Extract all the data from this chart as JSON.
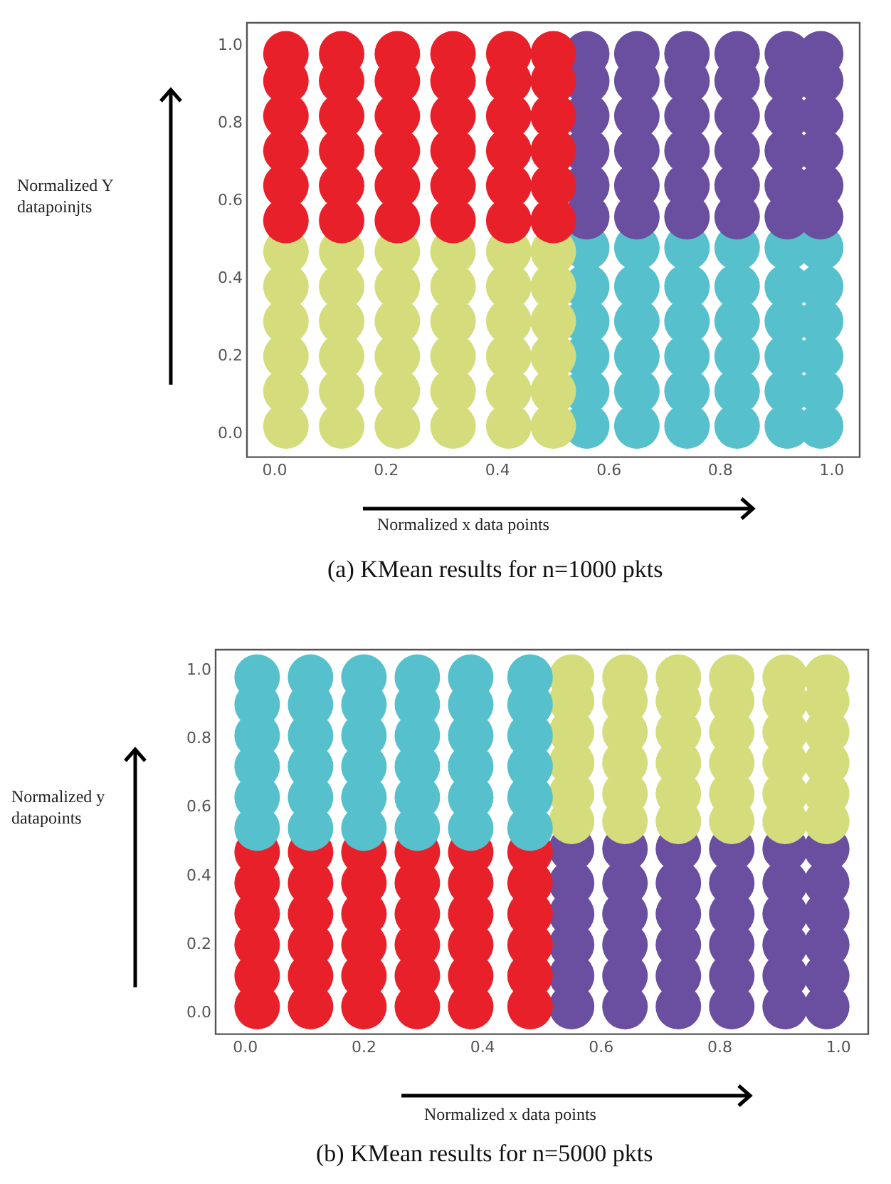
{
  "chart_data": [
    {
      "type": "scatter",
      "title": "(a) KMean results for n=1000 pkts",
      "xlabel": "Normalized x data points",
      "ylabel": "Normalized Y datapoinjts",
      "marker": "circle",
      "xlim": [
        -0.05,
        1.05
      ],
      "ylim": [
        -0.06,
        1.06
      ],
      "xticks": [
        {
          "value": 0,
          "label": "0.0"
        },
        {
          "value": 0.2,
          "label": "0.2"
        },
        {
          "value": 0.4,
          "label": "0.4"
        },
        {
          "value": 0.6,
          "label": "0.6"
        },
        {
          "value": 0.8,
          "label": "0.8"
        },
        {
          "value": 1,
          "label": "1.0"
        }
      ],
      "yticks": [
        {
          "value": 0,
          "label": "0.0"
        },
        {
          "value": 0.2,
          "label": "0.2"
        },
        {
          "value": 0.4,
          "label": "0.4"
        },
        {
          "value": 0.6,
          "label": "0.6"
        },
        {
          "value": 0.8,
          "label": "0.8"
        },
        {
          "value": 1,
          "label": "1.0"
        }
      ],
      "series": [
        {
          "color": "#e8202a",
          "x": [
            0.02,
            0.12,
            0.22,
            0.32,
            0.42,
            0.5,
            0.02,
            0.12,
            0.22,
            0.32,
            0.42,
            0.5,
            0.02,
            0.12,
            0.22,
            0.32,
            0.42,
            0.5,
            0.02,
            0.12,
            0.22,
            0.32,
            0.42,
            0.5,
            0.02,
            0.12,
            0.22,
            0.32,
            0.42,
            0.5,
            0.02,
            0.12,
            0.22,
            0.32,
            0.42,
            0.5
          ],
          "values": [
            0.55,
            0.55,
            0.55,
            0.55,
            0.55,
            0.55,
            0.64,
            0.64,
            0.64,
            0.64,
            0.64,
            0.64,
            0.73,
            0.73,
            0.73,
            0.73,
            0.73,
            0.73,
            0.82,
            0.82,
            0.82,
            0.82,
            0.82,
            0.82,
            0.91,
            0.91,
            0.91,
            0.91,
            0.91,
            0.91,
            0.98,
            0.98,
            0.98,
            0.98,
            0.98,
            0.98
          ]
        },
        {
          "color": "#6a4fa0",
          "x": [
            0.56,
            0.65,
            0.74,
            0.83,
            0.92,
            0.98,
            0.56,
            0.65,
            0.74,
            0.83,
            0.92,
            0.98,
            0.56,
            0.65,
            0.74,
            0.83,
            0.92,
            0.98,
            0.56,
            0.65,
            0.74,
            0.83,
            0.92,
            0.98,
            0.56,
            0.65,
            0.74,
            0.83,
            0.92,
            0.98,
            0.56,
            0.65,
            0.74,
            0.83,
            0.92,
            0.98
          ],
          "values": [
            0.56,
            0.56,
            0.56,
            0.56,
            0.56,
            0.56,
            0.64,
            0.64,
            0.64,
            0.64,
            0.64,
            0.64,
            0.73,
            0.73,
            0.73,
            0.73,
            0.73,
            0.73,
            0.82,
            0.82,
            0.82,
            0.82,
            0.82,
            0.82,
            0.91,
            0.91,
            0.91,
            0.91,
            0.91,
            0.91,
            0.98,
            0.98,
            0.98,
            0.98,
            0.98,
            0.98
          ]
        },
        {
          "color": "#d4dc7c",
          "x": [
            0.02,
            0.12,
            0.22,
            0.32,
            0.42,
            0.5,
            0.02,
            0.12,
            0.22,
            0.32,
            0.42,
            0.5,
            0.02,
            0.12,
            0.22,
            0.32,
            0.42,
            0.5,
            0.02,
            0.12,
            0.22,
            0.32,
            0.42,
            0.5,
            0.02,
            0.12,
            0.22,
            0.32,
            0.42,
            0.5,
            0.02,
            0.12,
            0.22,
            0.32,
            0.42,
            0.5
          ],
          "values": [
            0.02,
            0.02,
            0.02,
            0.02,
            0.02,
            0.02,
            0.11,
            0.11,
            0.11,
            0.11,
            0.11,
            0.11,
            0.2,
            0.2,
            0.2,
            0.2,
            0.2,
            0.2,
            0.29,
            0.29,
            0.29,
            0.29,
            0.29,
            0.29,
            0.38,
            0.38,
            0.38,
            0.38,
            0.38,
            0.38,
            0.47,
            0.47,
            0.47,
            0.47,
            0.47,
            0.47
          ]
        },
        {
          "color": "#56c1cc",
          "x": [
            0.56,
            0.65,
            0.74,
            0.83,
            0.92,
            0.98,
            0.56,
            0.65,
            0.74,
            0.83,
            0.92,
            0.98,
            0.56,
            0.65,
            0.74,
            0.83,
            0.92,
            0.98,
            0.56,
            0.65,
            0.74,
            0.83,
            0.92,
            0.98,
            0.56,
            0.65,
            0.74,
            0.83,
            0.92,
            0.98,
            0.56,
            0.65,
            0.74,
            0.83,
            0.92,
            0.98
          ],
          "values": [
            0.02,
            0.02,
            0.02,
            0.02,
            0.02,
            0.02,
            0.11,
            0.11,
            0.11,
            0.11,
            0.11,
            0.11,
            0.2,
            0.2,
            0.2,
            0.2,
            0.2,
            0.2,
            0.29,
            0.29,
            0.29,
            0.29,
            0.29,
            0.29,
            0.38,
            0.38,
            0.38,
            0.38,
            0.38,
            0.38,
            0.48,
            0.48,
            0.48,
            0.48,
            0.48,
            0.48
          ]
        }
      ]
    },
    {
      "type": "scatter",
      "title": "(b) KMean results for n=5000 pkts",
      "xlabel": "Normalized x data points",
      "ylabel": "Normalized y datapoints",
      "marker": "circle",
      "xlim": [
        -0.05,
        1.05
      ],
      "ylim": [
        -0.06,
        1.06
      ],
      "xticks": [
        {
          "value": 0,
          "label": "0.0"
        },
        {
          "value": 0.2,
          "label": "0.2"
        },
        {
          "value": 0.4,
          "label": "0.4"
        },
        {
          "value": 0.6,
          "label": "0.6"
        },
        {
          "value": 0.8,
          "label": "0.8"
        },
        {
          "value": 1,
          "label": "1.0"
        }
      ],
      "yticks": [
        {
          "value": 0,
          "label": "0.0"
        },
        {
          "value": 0.2,
          "label": "0.2"
        },
        {
          "value": 0.4,
          "label": "0.4"
        },
        {
          "value": 0.6,
          "label": "0.6"
        },
        {
          "value": 0.8,
          "label": "0.8"
        },
        {
          "value": 1,
          "label": "1.0"
        }
      ],
      "series": [
        {
          "color": "#56c1cc",
          "x": [
            0.02,
            0.11,
            0.2,
            0.29,
            0.38,
            0.48,
            0.02,
            0.11,
            0.2,
            0.29,
            0.38,
            0.48,
            0.02,
            0.11,
            0.2,
            0.29,
            0.38,
            0.48,
            0.02,
            0.11,
            0.2,
            0.29,
            0.38,
            0.48,
            0.02,
            0.11,
            0.2,
            0.29,
            0.38,
            0.48,
            0.02,
            0.11,
            0.2,
            0.29,
            0.38,
            0.48
          ],
          "values": [
            0.54,
            0.54,
            0.54,
            0.54,
            0.54,
            0.54,
            0.63,
            0.63,
            0.63,
            0.63,
            0.63,
            0.63,
            0.72,
            0.72,
            0.72,
            0.72,
            0.72,
            0.72,
            0.81,
            0.81,
            0.81,
            0.81,
            0.81,
            0.81,
            0.9,
            0.9,
            0.9,
            0.9,
            0.9,
            0.9,
            0.98,
            0.98,
            0.98,
            0.98,
            0.98,
            0.98
          ]
        },
        {
          "color": "#d4dc7c",
          "x": [
            0.55,
            0.64,
            0.73,
            0.82,
            0.91,
            0.98,
            0.55,
            0.64,
            0.73,
            0.82,
            0.91,
            0.98,
            0.55,
            0.64,
            0.73,
            0.82,
            0.91,
            0.98,
            0.55,
            0.64,
            0.73,
            0.82,
            0.91,
            0.98,
            0.55,
            0.64,
            0.73,
            0.82,
            0.91,
            0.98,
            0.55,
            0.64,
            0.73,
            0.82,
            0.91,
            0.98
          ],
          "values": [
            0.56,
            0.56,
            0.56,
            0.56,
            0.56,
            0.56,
            0.64,
            0.64,
            0.64,
            0.64,
            0.64,
            0.64,
            0.73,
            0.73,
            0.73,
            0.73,
            0.73,
            0.73,
            0.82,
            0.82,
            0.82,
            0.82,
            0.82,
            0.82,
            0.91,
            0.91,
            0.91,
            0.91,
            0.91,
            0.91,
            0.98,
            0.98,
            0.98,
            0.98,
            0.98,
            0.98
          ]
        },
        {
          "color": "#e8202a",
          "x": [
            0.02,
            0.11,
            0.2,
            0.29,
            0.38,
            0.48,
            0.02,
            0.11,
            0.2,
            0.29,
            0.38,
            0.48,
            0.02,
            0.11,
            0.2,
            0.29,
            0.38,
            0.48,
            0.02,
            0.11,
            0.2,
            0.29,
            0.38,
            0.48,
            0.02,
            0.11,
            0.2,
            0.29,
            0.38,
            0.48,
            0.02,
            0.11,
            0.2,
            0.29,
            0.38,
            0.48
          ],
          "values": [
            0.02,
            0.02,
            0.02,
            0.02,
            0.02,
            0.02,
            0.11,
            0.11,
            0.11,
            0.11,
            0.11,
            0.11,
            0.2,
            0.2,
            0.2,
            0.2,
            0.2,
            0.2,
            0.29,
            0.29,
            0.29,
            0.29,
            0.29,
            0.29,
            0.38,
            0.38,
            0.38,
            0.38,
            0.38,
            0.38,
            0.47,
            0.47,
            0.47,
            0.47,
            0.47,
            0.47
          ]
        },
        {
          "color": "#6a4fa0",
          "x": [
            0.55,
            0.64,
            0.73,
            0.82,
            0.91,
            0.98,
            0.55,
            0.64,
            0.73,
            0.82,
            0.91,
            0.98,
            0.55,
            0.64,
            0.73,
            0.82,
            0.91,
            0.98,
            0.55,
            0.64,
            0.73,
            0.82,
            0.91,
            0.98,
            0.55,
            0.64,
            0.73,
            0.82,
            0.91,
            0.98,
            0.55,
            0.64,
            0.73,
            0.82,
            0.91,
            0.98
          ],
          "values": [
            0.02,
            0.02,
            0.02,
            0.02,
            0.02,
            0.02,
            0.11,
            0.11,
            0.11,
            0.11,
            0.11,
            0.11,
            0.2,
            0.2,
            0.2,
            0.2,
            0.2,
            0.2,
            0.29,
            0.29,
            0.29,
            0.29,
            0.29,
            0.29,
            0.38,
            0.38,
            0.38,
            0.38,
            0.38,
            0.38,
            0.48,
            0.48,
            0.48,
            0.48,
            0.48,
            0.48
          ]
        }
      ]
    }
  ]
}
